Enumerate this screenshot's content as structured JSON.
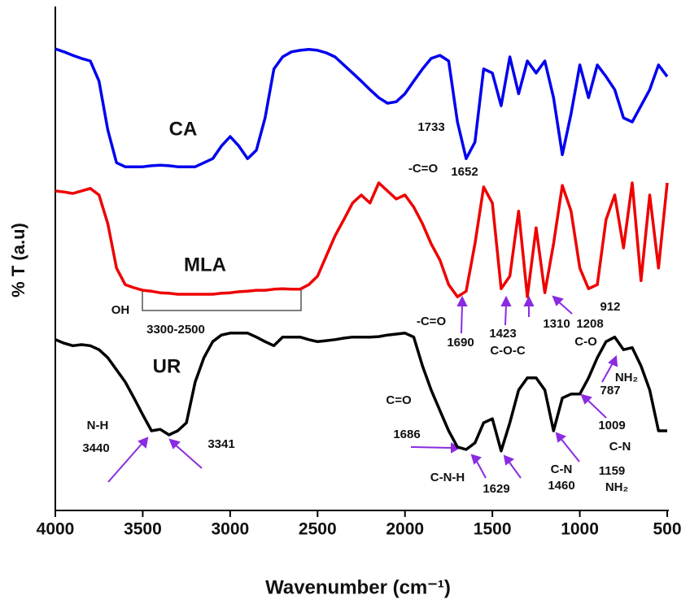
{
  "chart_data": {
    "type": "line",
    "x_label": "Wavenumber (cm⁻¹)",
    "y_label": "% T (a.u)",
    "xlim": [
      4000,
      500
    ],
    "ylim": [
      0,
      100
    ],
    "xticks": [
      4000,
      3500,
      3000,
      2500,
      2000,
      1500,
      1000,
      500
    ],
    "x": [
      4000,
      3950,
      3900,
      3850,
      3800,
      3750,
      3700,
      3650,
      3600,
      3550,
      3500,
      3450,
      3400,
      3350,
      3300,
      3250,
      3200,
      3150,
      3100,
      3050,
      3000,
      2950,
      2900,
      2850,
      2800,
      2750,
      2700,
      2650,
      2600,
      2550,
      2500,
      2450,
      2400,
      2350,
      2300,
      2250,
      2200,
      2150,
      2100,
      2050,
      2000,
      1950,
      1900,
      1850,
      1800,
      1750,
      1700,
      1650,
      1600,
      1550,
      1500,
      1450,
      1400,
      1350,
      1300,
      1250,
      1200,
      1150,
      1100,
      1050,
      1000,
      950,
      900,
      850,
      800,
      750,
      700,
      650,
      600,
      550,
      500
    ],
    "series": [
      {
        "name": "CA",
        "color": "#0000ee",
        "values": [
          91.6,
          91.0,
          90.3,
          89.7,
          89.2,
          85.2,
          75.5,
          69.0,
          68.2,
          68.2,
          68.2,
          68.4,
          68.5,
          68.4,
          68.2,
          68.2,
          68.2,
          69.0,
          69.8,
          72.3,
          74.2,
          72.3,
          69.8,
          71.5,
          77.9,
          87.6,
          90.0,
          91.0,
          91.3,
          91.5,
          91.3,
          90.8,
          90.0,
          88.4,
          86.8,
          85.2,
          83.5,
          81.9,
          80.8,
          81.1,
          82.7,
          85.2,
          87.6,
          89.7,
          90.3,
          89.2,
          77.1,
          69.8,
          73.1,
          87.6,
          86.8,
          80.3,
          90.0,
          82.7,
          89.2,
          86.8,
          89.2,
          81.9,
          70.6,
          78.7,
          88.4,
          81.9,
          88.4,
          86.1,
          83.5,
          77.9,
          77.1,
          80.3,
          83.5,
          88.4,
          86.1
        ]
      },
      {
        "name": "MLA",
        "color": "#ee0000",
        "values": [
          63.4,
          63.2,
          62.9,
          63.4,
          63.9,
          62.6,
          56.9,
          48.1,
          44.8,
          44.2,
          43.7,
          43.5,
          43.2,
          43.1,
          42.9,
          42.9,
          42.9,
          42.9,
          42.9,
          43.1,
          43.2,
          43.4,
          43.5,
          43.7,
          43.7,
          43.9,
          44.0,
          43.9,
          43.9,
          44.8,
          46.5,
          50.5,
          54.5,
          57.7,
          61.0,
          62.6,
          61.0,
          65.0,
          63.4,
          61.8,
          62.6,
          60.2,
          56.9,
          52.9,
          49.7,
          44.8,
          42.4,
          43.5,
          52.9,
          64.2,
          61.0,
          44.0,
          46.5,
          59.4,
          42.4,
          56.1,
          43.2,
          52.9,
          64.5,
          59.4,
          48.1,
          44.0,
          44.8,
          57.7,
          62.6,
          52.1,
          65.0,
          45.6,
          62.6,
          48.1,
          65.0
        ]
      },
      {
        "name": "UR",
        "color": "#000000",
        "values": [
          33.9,
          33.2,
          32.7,
          32.9,
          32.7,
          31.9,
          30.3,
          27.9,
          25.5,
          22.3,
          19.0,
          15.8,
          16.1,
          15.0,
          15.8,
          17.4,
          25.5,
          30.3,
          33.5,
          34.8,
          35.2,
          35.2,
          35.2,
          34.4,
          33.5,
          32.7,
          34.4,
          34.4,
          34.4,
          33.9,
          33.5,
          33.7,
          33.9,
          34.2,
          34.4,
          34.4,
          34.4,
          34.5,
          34.8,
          35.0,
          35.2,
          34.4,
          28.7,
          23.9,
          19.8,
          15.8,
          12.6,
          12.1,
          13.4,
          17.4,
          18.2,
          11.8,
          17.4,
          23.9,
          26.3,
          26.3,
          23.9,
          15.8,
          22.3,
          23.1,
          23.1,
          26.3,
          30.3,
          33.5,
          34.4,
          31.9,
          32.3,
          28.7,
          23.9,
          15.8,
          15.8
        ]
      }
    ],
    "annotations": [
      "1733",
      "-C=O",
      "1652",
      "OH",
      "3300-2500",
      "-C=O",
      "1690",
      "1423",
      "C-O-C",
      "1310",
      "1208",
      "C-O",
      "912",
      "N-H",
      "3440",
      "3341",
      "C=O",
      "1686",
      "C-N-H",
      "1629",
      "C-N",
      "1460",
      "1159",
      "NH₂",
      "1009",
      "C-N",
      "NH₂",
      "787"
    ]
  }
}
